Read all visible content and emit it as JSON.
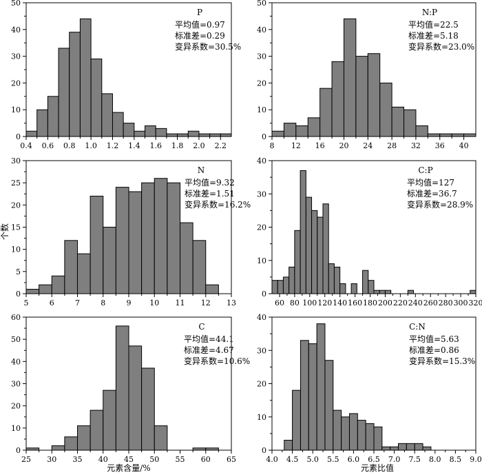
{
  "figure": {
    "ylabel": "个数",
    "xlabels": [
      "元素含量/%",
      "元素比值"
    ]
  },
  "chart_data": [
    {
      "type": "bar",
      "title": "P",
      "stats": [
        "平均值=0.97",
        "标准差=0.29",
        "变异系数=30.5%"
      ],
      "bin_start": 0.4,
      "bin_width": 0.1,
      "values": [
        2,
        10,
        15,
        33,
        39,
        44,
        29,
        16,
        9,
        5,
        2,
        4,
        3,
        1,
        1,
        2,
        1,
        1,
        1
      ],
      "xlim": [
        0.4,
        2.3
      ],
      "ylim": [
        0,
        50
      ],
      "xticks": [
        0.4,
        0.6,
        0.8,
        1.0,
        1.2,
        1.4,
        1.6,
        1.8,
        2.0,
        2.2
      ],
      "xtick_labels": [
        "0.4",
        "0.6",
        "0.8",
        "1.0",
        "1.2",
        "1.4",
        "1.6",
        "1.8",
        "2.0",
        "2.2"
      ],
      "yticks": [
        0,
        10,
        20,
        30,
        40,
        50
      ],
      "ytick_labels": [
        "0",
        "10",
        "20",
        "30",
        "40",
        "50"
      ]
    },
    {
      "type": "bar",
      "title": "N:P",
      "stats": [
        "平均值=22.5",
        "标准差=5.18",
        "变异系数=23.0%"
      ],
      "bin_start": 8,
      "bin_width": 2,
      "values": [
        2,
        5,
        4,
        7,
        18,
        28,
        44,
        30,
        31,
        20,
        11,
        10,
        4,
        1,
        1,
        1,
        1
      ],
      "xlim": [
        8,
        42
      ],
      "ylim": [
        0,
        50
      ],
      "xticks": [
        8,
        12,
        16,
        20,
        24,
        28,
        32,
        36,
        40
      ],
      "xtick_labels": [
        "8",
        "12",
        "16",
        "20",
        "24",
        "28",
        "32",
        "36",
        "40"
      ],
      "yticks": [
        0,
        10,
        20,
        30,
        40,
        50
      ],
      "ytick_labels": [
        "0",
        "10",
        "20",
        "30",
        "40",
        "50"
      ]
    },
    {
      "type": "bar",
      "title": "N",
      "stats": [
        "平均值=9.32",
        "标准差=1.51",
        "变异系数=16.2%"
      ],
      "bin_start": 5,
      "bin_width": 0.5,
      "values": [
        1,
        2,
        4,
        12,
        9,
        22,
        15,
        24,
        23,
        25,
        26,
        25,
        16,
        12,
        2
      ],
      "xlim": [
        5,
        13
      ],
      "ylim": [
        0,
        30
      ],
      "xticks": [
        5,
        6,
        7,
        8,
        9,
        10,
        11,
        12,
        13
      ],
      "xtick_labels": [
        "5",
        "6",
        "7",
        "8",
        "9",
        "10",
        "11",
        "12",
        "13"
      ],
      "yticks": [
        0,
        5,
        10,
        15,
        20,
        25,
        30
      ],
      "ytick_labels": [
        "0",
        "5",
        "10",
        "15",
        "20",
        "25",
        "30"
      ]
    },
    {
      "type": "bar",
      "title": "C:P",
      "stats": [
        "平均值=127",
        "标准差=36.7",
        "变异系数=28.9%"
      ],
      "bin_start": 50,
      "bin_width": 7.5,
      "values": [
        4,
        4,
        5,
        8,
        19,
        37,
        29,
        25,
        23,
        27,
        9,
        8,
        3,
        0,
        3,
        0,
        7,
        4,
        1,
        1,
        1,
        0,
        0,
        0,
        1,
        0,
        0,
        0,
        0,
        0,
        0,
        0,
        0,
        0,
        0,
        1
      ],
      "xlim": [
        50,
        320
      ],
      "ylim": [
        0,
        40
      ],
      "xticks": [
        60,
        80,
        100,
        120,
        140,
        160,
        180,
        200,
        220,
        240,
        260,
        280,
        300,
        320
      ],
      "xtick_labels": [
        "60",
        "80",
        "100",
        "120",
        "140",
        "160",
        "180",
        "200",
        "220",
        "240",
        "260",
        "280",
        "300",
        "320"
      ],
      "yticks": [
        0,
        10,
        20,
        30,
        40
      ],
      "ytick_labels": [
        "0",
        "10",
        "20",
        "30",
        "40"
      ]
    },
    {
      "type": "bar",
      "title": "C",
      "stats": [
        "平均值=44.1",
        "标准差=4.67",
        "变异系数=10.6%"
      ],
      "bin_start": 25,
      "bin_width": 2.5,
      "values": [
        1,
        0,
        2,
        6,
        11,
        18,
        27,
        56,
        47,
        37,
        11,
        0,
        0,
        1,
        1
      ],
      "xlim": [
        25,
        65
      ],
      "ylim": [
        0,
        60
      ],
      "xticks": [
        25,
        30,
        35,
        40,
        45,
        50,
        55,
        60,
        65
      ],
      "xtick_labels": [
        "25",
        "30",
        "35",
        "40",
        "45",
        "50",
        "55",
        "60",
        "65"
      ],
      "yticks": [
        0,
        10,
        20,
        30,
        40,
        50,
        60
      ],
      "ytick_labels": [
        "0",
        "10",
        "20",
        "30",
        "40",
        "50",
        "60"
      ]
    },
    {
      "type": "bar",
      "title": "C:N",
      "stats": [
        "平均值=5.63",
        "标准差=0.86",
        "变异系数=15.3%"
      ],
      "bin_start": 4.3,
      "bin_width": 0.2,
      "values": [
        3,
        18,
        33,
        32,
        38,
        27,
        12,
        10,
        11,
        9,
        8,
        7,
        1,
        1,
        2,
        2,
        2,
        1
      ],
      "xlim": [
        4.0,
        9.0
      ],
      "ylim": [
        0,
        40
      ],
      "xticks": [
        4.0,
        4.5,
        5.0,
        5.5,
        6.0,
        6.5,
        7.0,
        7.5,
        8.0,
        8.5,
        9.0
      ],
      "xtick_labels": [
        "4.0",
        "4.5",
        "5.0",
        "5.5",
        "6.0",
        "6.5",
        "7.0",
        "7.5",
        "8.0",
        "8.5",
        "9.0"
      ],
      "yticks": [
        0,
        10,
        20,
        30,
        40
      ],
      "ytick_labels": [
        "0",
        "10",
        "20",
        "30",
        "40"
      ]
    }
  ],
  "colors": {
    "bar_fill": "#7f7f7f",
    "bar_stroke": "#000000",
    "axis": "#000000"
  }
}
